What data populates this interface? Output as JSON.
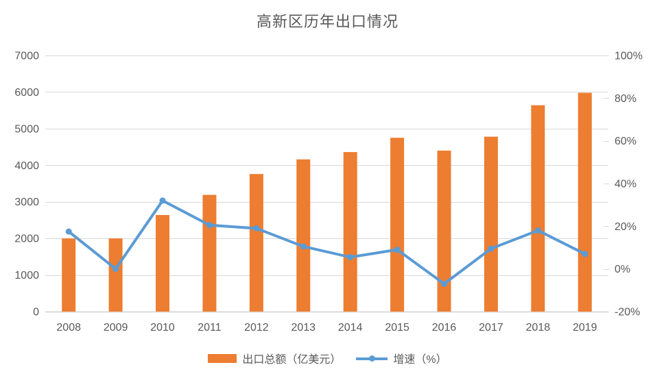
{
  "page": {
    "background": "#FFFFFF"
  },
  "chart_data": {
    "type": "combo-bar-line",
    "title": "高新区历年出口情况",
    "categories": [
      "2008",
      "2009",
      "2010",
      "2011",
      "2012",
      "2013",
      "2014",
      "2015",
      "2016",
      "2017",
      "2018",
      "2019"
    ],
    "series": [
      {
        "name": "出口总额（亿美元）",
        "type": "bar",
        "axis": "left",
        "color": "#ED7D31",
        "values": [
          2000,
          2000,
          2640,
          3190,
          3760,
          4160,
          4360,
          4750,
          4400,
          4780,
          5640,
          5980
        ]
      },
      {
        "name": "增速（%）",
        "type": "line",
        "axis": "right",
        "color": "#5B9BD5",
        "marker": "circle",
        "values": [
          17.5,
          0,
          32,
          20.5,
          19,
          10.5,
          5.5,
          9,
          -7,
          9.5,
          18,
          7
        ]
      }
    ],
    "left_axis": {
      "min": 0,
      "max": 7000,
      "step": 1000,
      "ticks": [
        "0",
        "1000",
        "2000",
        "3000",
        "4000",
        "5000",
        "6000",
        "7000"
      ]
    },
    "right_axis": {
      "min": -20,
      "max": 100,
      "step": 20,
      "ticks": [
        "-20%",
        "0%",
        "20%",
        "40%",
        "60%",
        "80%",
        "100%"
      ]
    },
    "grid": true,
    "legend_position": "bottom",
    "colors": {
      "grid": "#D9D9D9",
      "axis_line": "#D9D9D9",
      "axis_text": "#595959",
      "title_text": "#595959",
      "background": "#FFFFFF"
    }
  }
}
